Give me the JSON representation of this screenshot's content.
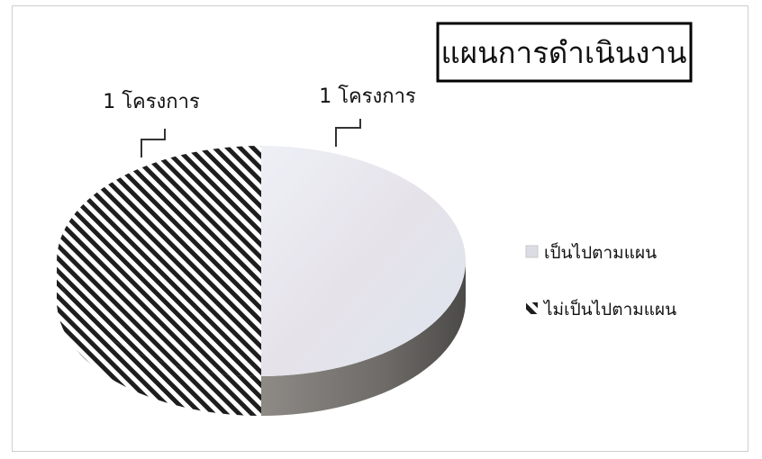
{
  "chart_data": {
    "type": "pie",
    "title": "แผนการดำเนินงาน",
    "labels": [
      "เป็นไปตามแผน",
      "ไม่เป็นไปตามแผน"
    ],
    "values": [
      1,
      1
    ],
    "data_labels": [
      "1 โครงการ",
      "1 โครงการ"
    ],
    "legend_position": "right",
    "style": "3d",
    "colors": [
      "#e4e4ec",
      "#2a2a2a"
    ],
    "patterns": [
      "solid",
      "diagonal-hatch"
    ]
  }
}
